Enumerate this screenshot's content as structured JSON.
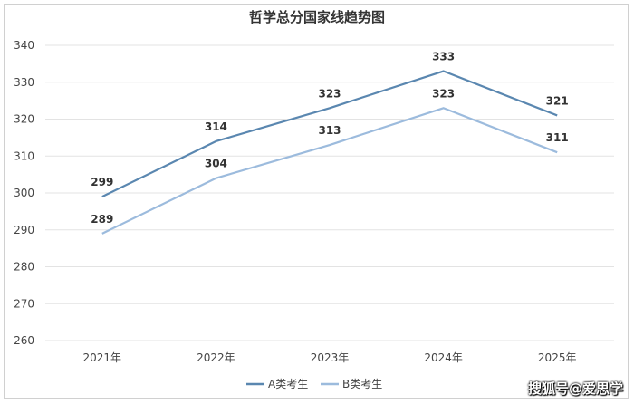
{
  "watermark": "搜狐号@爱思学",
  "chart_data": {
    "type": "line",
    "title": "哲学总分国家线趋势图",
    "categories": [
      "2021年",
      "2022年",
      "2023年",
      "2024年",
      "2025年"
    ],
    "series": [
      {
        "name": "A类考生",
        "values": [
          299,
          314,
          323,
          333,
          321
        ],
        "color": "#5a87b0"
      },
      {
        "name": "B类考生",
        "values": [
          289,
          304,
          313,
          323,
          311
        ],
        "color": "#9cbbdd"
      }
    ],
    "ylim": [
      260,
      340
    ],
    "yticks": [
      260,
      270,
      280,
      290,
      300,
      310,
      320,
      330,
      340
    ],
    "grid": true,
    "legend": "bottom",
    "data_labels": true
  }
}
